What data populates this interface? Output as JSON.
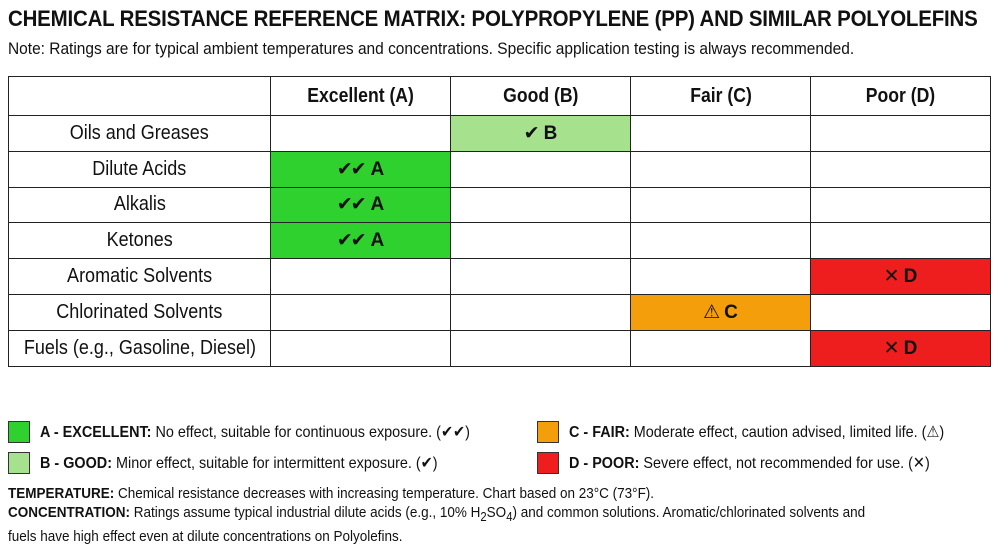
{
  "title": "CHEMICAL RESISTANCE REFERENCE MATRIX: POLYPROPYLENE (PP) AND SIMILAR POLYOLEFINS",
  "note": "Note: Ratings are for typical ambient temperatures and concentrations. Specific application testing is always recommended.",
  "columns": [
    "Excellent (A)",
    "Good (B)",
    "Fair (C)",
    "Poor (D)"
  ],
  "marks": {
    "A": "✔✔",
    "B": "✔",
    "C": "⚠",
    "D": "✕"
  },
  "rows": [
    {
      "label": "Oils and Greases",
      "rating": "B"
    },
    {
      "label": "Dilute Acids",
      "rating": "A"
    },
    {
      "label": "Alkalis",
      "rating": "A"
    },
    {
      "label": "Ketones",
      "rating": "A"
    },
    {
      "label": "Aromatic Solvents",
      "rating": "D"
    },
    {
      "label": "Chlorinated Solvents",
      "rating": "C"
    },
    {
      "label": "Fuels (e.g., Gasoline, Diesel)",
      "rating": "D"
    }
  ],
  "colors": {
    "A": "#2ed12e",
    "B": "#a6e28e",
    "C": "#f59e0b",
    "D": "#ee1e1e"
  },
  "legend": {
    "A": {
      "key": "A - EXCELLENT:",
      "text": "No effect, suitable for continuous exposure. (✔✔)"
    },
    "B": {
      "key": "B - GOOD:",
      "text": "Minor effect, suitable for intermittent exposure. (✔)"
    },
    "C": {
      "key": "C - FAIR:",
      "text": "Moderate effect, caution advised, limited life. (⚠)"
    },
    "D": {
      "key": "D - POOR:",
      "text": "Severe effect, not recommended for use. (✕)"
    }
  },
  "footer": {
    "temperature_key": "TEMPERATURE:",
    "temperature_text": "Chemical resistance decreases with increasing temperature. Chart based on 23°C (73°F).",
    "concentration_key": "CONCENTRATION:",
    "concentration_text_1": "Ratings assume typical industrial dilute acids (e.g., 10% H",
    "concentration_sub_1": "2",
    "concentration_text_2": "SO",
    "concentration_sub_2": "4",
    "concentration_text_3": ") and common solutions. Aromatic/chlorinated solvents and",
    "concentration_text_4": "fuels have high effect even at dilute concentrations on Polyolefins."
  }
}
